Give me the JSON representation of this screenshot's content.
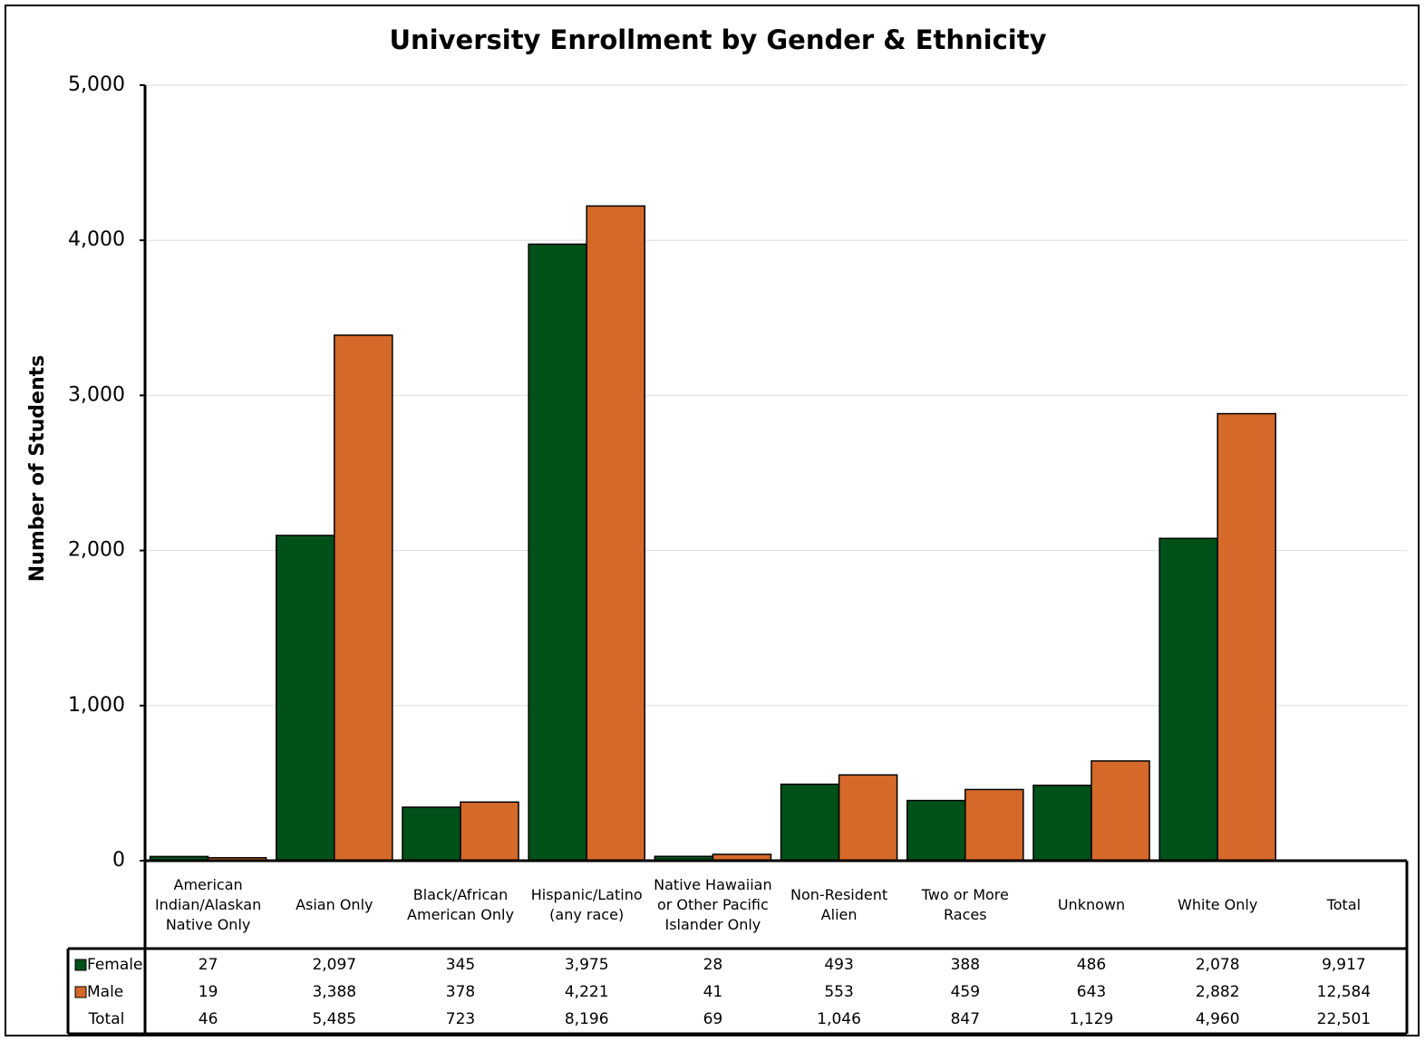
{
  "chart_data": {
    "type": "bar",
    "title": "University Enrollment by Gender & Ethnicity",
    "y_label": "Number of Students",
    "categories": [
      "American Indian/Alaskan Native Only",
      "Asian Only",
      "Black/African American Only",
      "Hispanic/Latino (any race)",
      "Native Hawaiian or Other Pacific Islander Only",
      "Non-Resident Alien",
      "Two or More Races",
      "Unknown",
      "White Only"
    ],
    "series": [
      {
        "name": "Female",
        "color": "#00501a",
        "values": [
          27,
          2097,
          345,
          3975,
          28,
          493,
          388,
          486,
          2078
        ],
        "value_labels": [
          "27",
          "2,097",
          "345",
          "3,975",
          "28",
          "493",
          "388",
          "486",
          "2,078"
        ],
        "total": 9917,
        "total_label": "9,917"
      },
      {
        "name": "Male",
        "color": "#d5692a",
        "values": [
          19,
          3388,
          378,
          4221,
          41,
          553,
          459,
          643,
          2882
        ],
        "value_labels": [
          "19",
          "3,388",
          "378",
          "4,221",
          "41",
          "553",
          "459",
          "643",
          "2,882"
        ],
        "total": 12584,
        "total_label": "12,584"
      }
    ],
    "total_column": "Total",
    "total_row": {
      "name": "Total",
      "values": [
        46,
        5485,
        723,
        8196,
        69,
        1046,
        847,
        1129,
        4960
      ],
      "value_labels": [
        "46",
        "5,485",
        "723",
        "8,196",
        "69",
        "1,046",
        "847",
        "1,129",
        "4,960"
      ],
      "total": 22501,
      "total_label": "22,501"
    },
    "ylim": [
      0,
      5000
    ],
    "yticks": [
      0,
      {
        "value": 1000,
        "label": "1,000"
      },
      {
        "value": 2000,
        "label": "2,000"
      },
      {
        "value": 3000,
        "label": "3,000"
      },
      {
        "value": 4000,
        "label": "4,000"
      },
      {
        "value": 5000,
        "label": "5,000"
      }
    ],
    "grid": true
  }
}
